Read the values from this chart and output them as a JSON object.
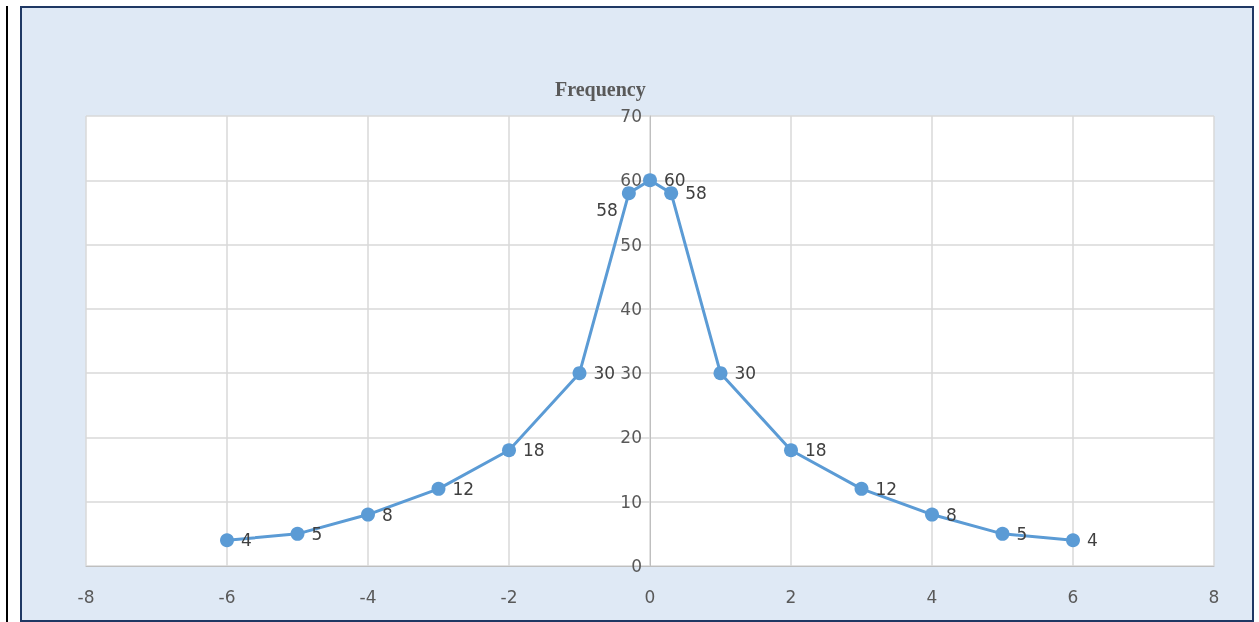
{
  "chart_data": {
    "type": "line",
    "title": "Frequency",
    "x": [
      -6,
      -5,
      -4,
      -3,
      -2,
      -1,
      -0.3,
      0,
      0.3,
      1,
      2,
      3,
      4,
      5,
      6
    ],
    "series": [
      {
        "color": "#5b9bd5",
        "values": [
          4,
          5,
          8,
          12,
          18,
          30,
          58,
          60,
          58,
          30,
          18,
          12,
          8,
          5,
          4
        ]
      }
    ],
    "xlim": [
      -8,
      8
    ],
    "xticks": [
      -8,
      -6,
      -4,
      -2,
      0,
      2,
      4,
      6,
      8
    ],
    "ylim": [
      0,
      70
    ],
    "yticks": [
      0,
      10,
      20,
      30,
      40,
      50,
      60,
      70
    ],
    "grid": true,
    "marker": "circle",
    "line_style": "solid",
    "data_labels": true
  }
}
